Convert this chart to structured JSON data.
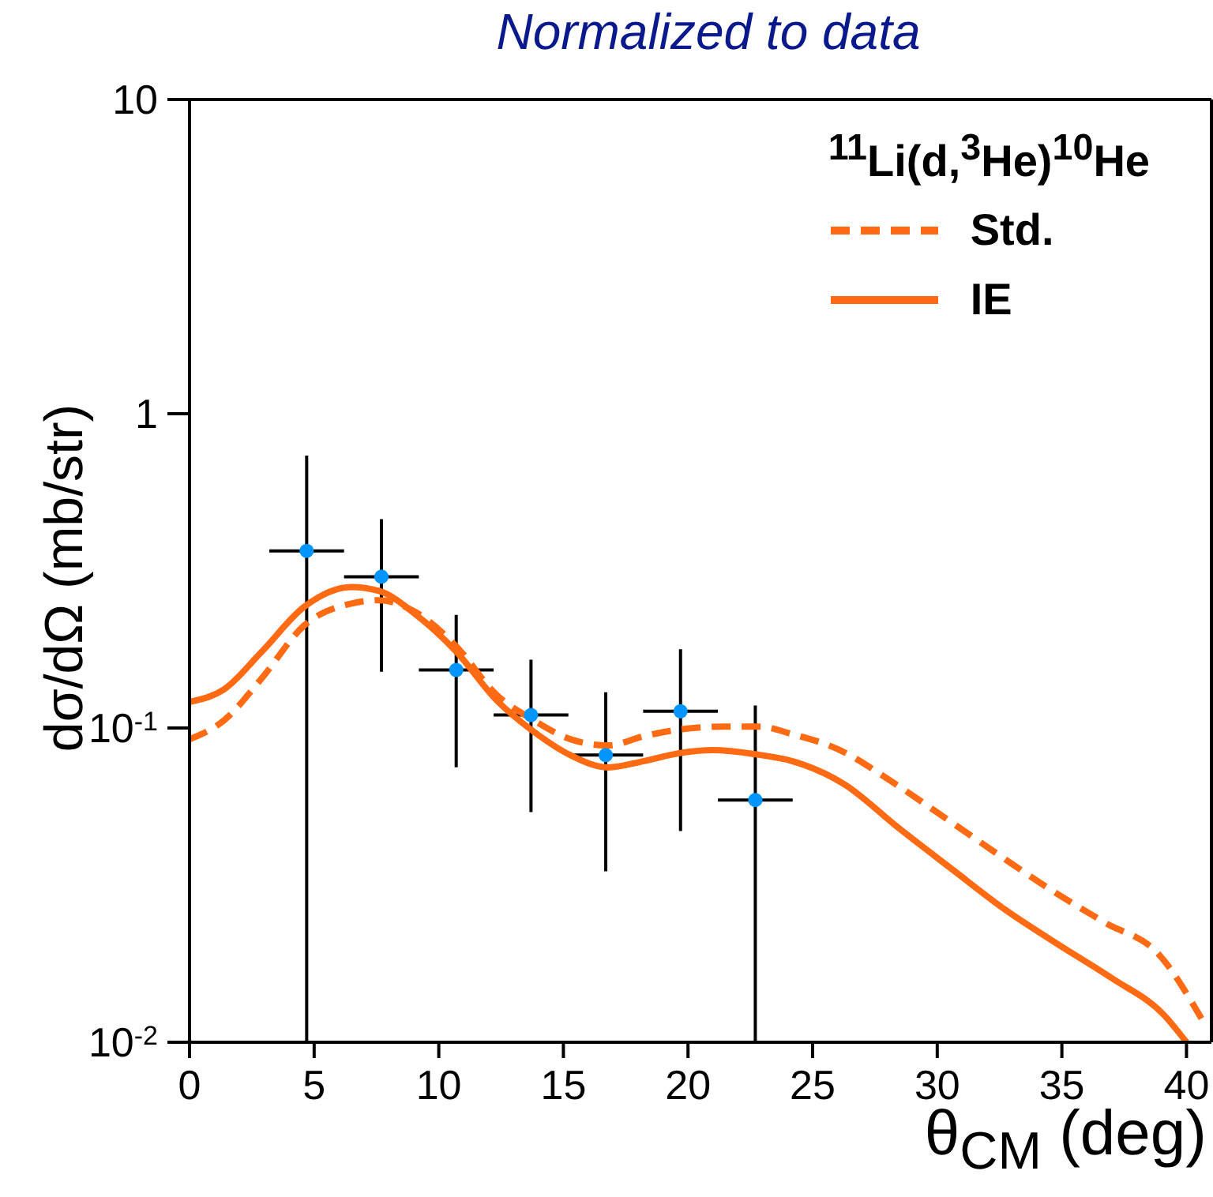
{
  "chart_data": {
    "type": "line",
    "title": "Normalized to data",
    "xlabel": "θ$_{CM}$ (deg)",
    "ylabel": "dσ/dΩ (mb/str)",
    "legend_title": "$^{11}$Li(d,$^{3}$He)$^{10}$He",
    "log": "y",
    "xlim": [
      0,
      41
    ],
    "ylim": [
      0.01,
      10
    ],
    "xticks": [
      0,
      5,
      10,
      15,
      20,
      25,
      30,
      35,
      40
    ],
    "yticks": [
      {
        "value": 0.01,
        "label": "10$^{-2}$"
      },
      {
        "value": 0.1,
        "label": "10$^{-1}$"
      },
      1,
      10
    ],
    "grid": false,
    "legend": "top right",
    "series": [
      {
        "type": "scatter",
        "color": "#0095ff",
        "marker": "circle",
        "x": [
          4.7,
          7.7,
          10.7,
          13.7,
          16.7,
          19.7,
          22.7
        ],
        "values": [
          0.366,
          0.303,
          0.153,
          0.11,
          0.082,
          0.113,
          0.059
        ],
        "errors": [
          [
            0.01,
            0.736
          ],
          [
            0.151,
            0.462
          ],
          [
            0.075,
            0.229
          ],
          [
            0.054,
            0.165
          ],
          [
            0.035,
            0.13
          ],
          [
            0.047,
            0.178
          ],
          [
            0.01,
            0.118
          ]
        ],
        "xerrors": [
          1.5,
          1.5,
          1.5,
          1.5,
          1.5,
          1.5,
          1.5
        ]
      },
      {
        "name": "Std.",
        "color": "#ff6a13",
        "line_style": "dashed",
        "marker": "none",
        "x": [
          0,
          1.4,
          2.9,
          4.6,
          6.5,
          7.6,
          9.1,
          10.7,
          12.3,
          13.8,
          15.3,
          16.8,
          18.2,
          19.7,
          21.5,
          22.9,
          24.1,
          26.1,
          28.2,
          30.4,
          32.5,
          34.6,
          36.7,
          38.9,
          40.6
        ],
        "values": [
          0.092,
          0.106,
          0.144,
          0.212,
          0.249,
          0.255,
          0.233,
          0.182,
          0.128,
          0.106,
          0.092,
          0.088,
          0.094,
          0.099,
          0.101,
          0.101,
          0.096,
          0.085,
          0.0673,
          0.0512,
          0.0393,
          0.0304,
          0.0241,
          0.019,
          0.0119
        ]
      },
      {
        "name": "IE",
        "color": "#ff6a13",
        "line_style": "solid",
        "marker": "none",
        "x": [
          0,
          1.4,
          2.9,
          4.6,
          6.5,
          7.6,
          9.1,
          10.7,
          12.3,
          13.8,
          15.3,
          16.8,
          18.2,
          19.7,
          21,
          22.7,
          24.2,
          26.3,
          28.4,
          30.6,
          32.7,
          34.8,
          37,
          39.1,
          40
        ],
        "values": [
          0.121,
          0.133,
          0.175,
          0.243,
          0.281,
          0.273,
          0.229,
          0.175,
          0.123,
          0.0975,
          0.0818,
          0.0749,
          0.0784,
          0.0833,
          0.085,
          0.0825,
          0.0784,
          0.066,
          0.0484,
          0.0355,
          0.0265,
          0.0206,
          0.016,
          0.0122,
          0.01
        ]
      }
    ]
  }
}
